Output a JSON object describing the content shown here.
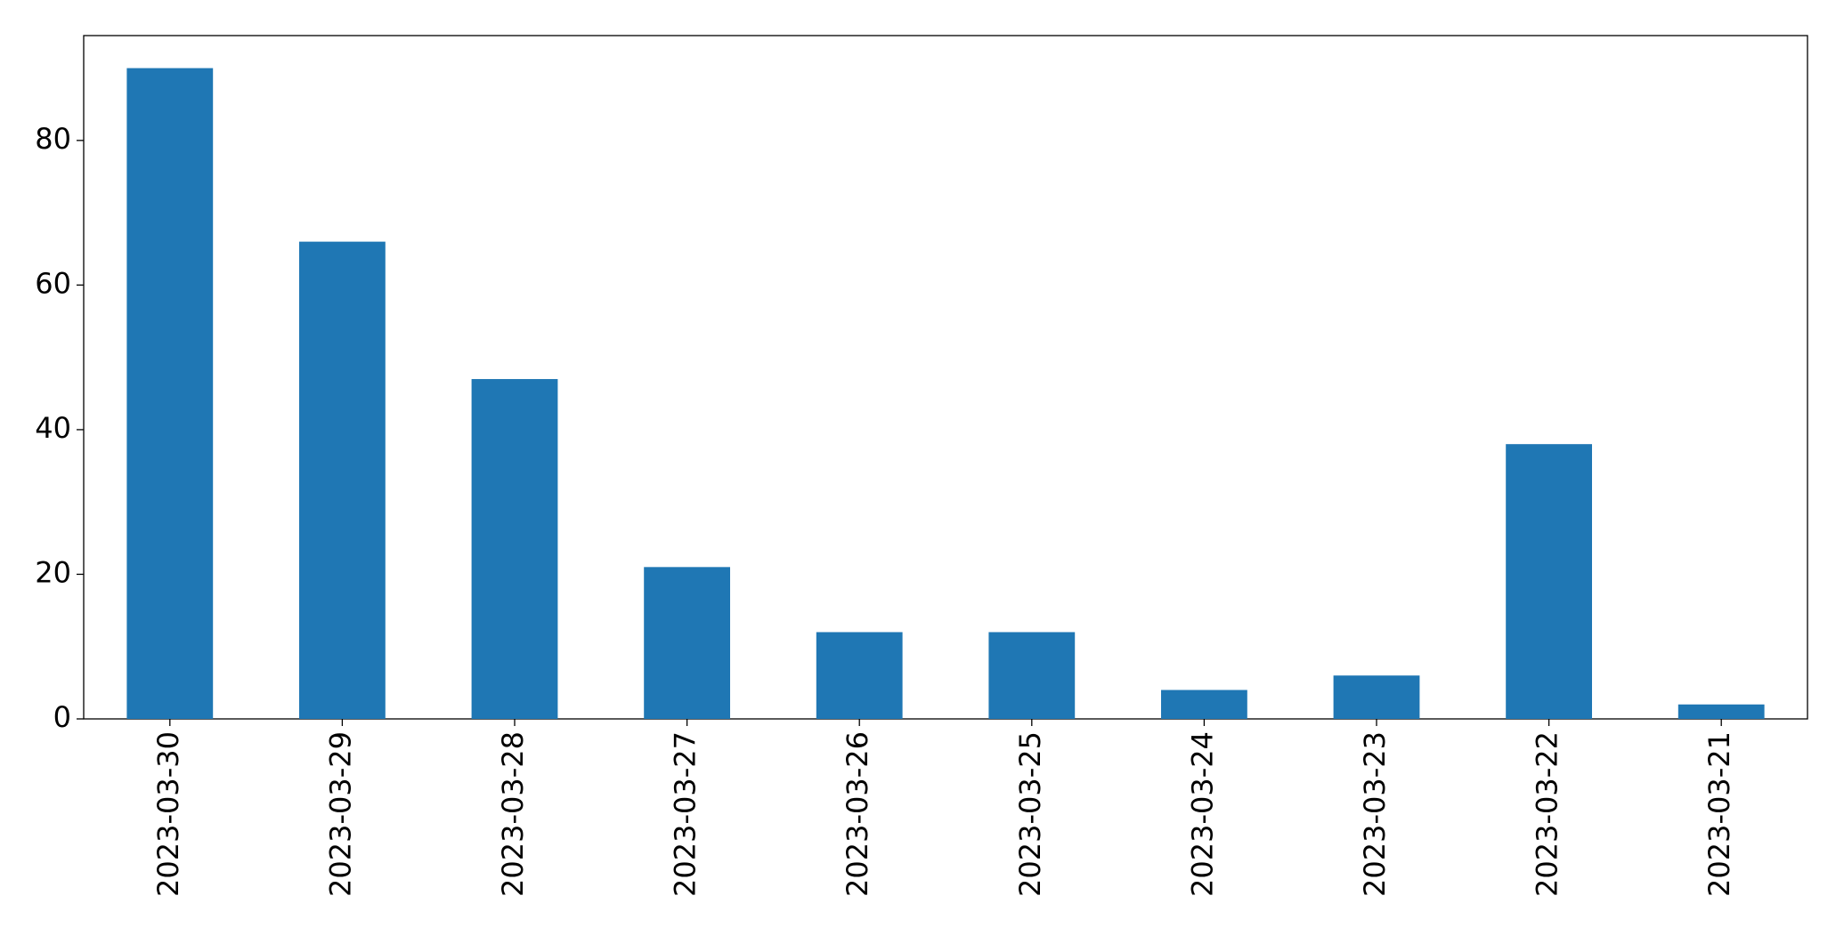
{
  "chart_data": {
    "type": "bar",
    "categories": [
      "2023-03-30",
      "2023-03-29",
      "2023-03-28",
      "2023-03-27",
      "2023-03-26",
      "2023-03-25",
      "2023-03-24",
      "2023-03-23",
      "2023-03-22",
      "2023-03-21"
    ],
    "values": [
      90,
      66,
      47,
      21,
      12,
      12,
      4,
      6,
      38,
      2
    ],
    "color": "#1f77b4",
    "ylim": [
      0,
      94.5
    ],
    "yticks": [
      0,
      20,
      40,
      60,
      80
    ],
    "grid": false
  }
}
